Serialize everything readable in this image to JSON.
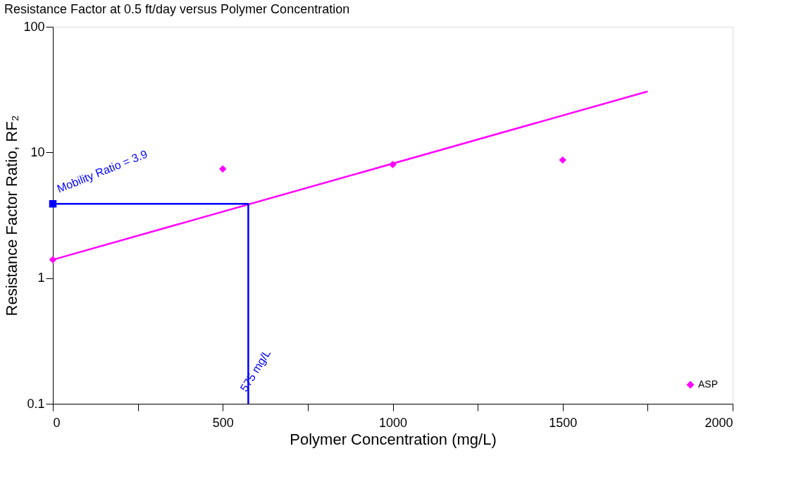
{
  "chart_data": {
    "type": "scatter",
    "title": "Resistance Factor at 0.5 ft/day versus Polymer Concentration",
    "xlabel": "Polymer Concentration (mg/L)",
    "ylabel": "Resistance Factor Ratio, RF₂",
    "log": "y",
    "grid": false,
    "legend": "bottom right",
    "xlim": [
      0,
      2000
    ],
    "xticks": [
      0,
      {
        "value": 250,
        "label": null
      },
      500,
      {
        "value": 750,
        "label": null
      },
      1000,
      {
        "value": 1250,
        "label": null
      },
      1500,
      {
        "value": 1750,
        "label": null
      },
      2000
    ],
    "ylim": [
      0.1,
      100
    ],
    "yticks": [
      0.1,
      1,
      10,
      100
    ],
    "series": [
      {
        "name": "ASP",
        "marker": "diamond",
        "color": "#ff00ff",
        "x": [
          0,
          500,
          1000,
          1500
        ],
        "values": [
          1.4,
          7.4,
          8.0,
          8.7
        ]
      },
      {
        "type": "line",
        "marker": "none",
        "line_style": "solid",
        "color": "#ff00ff",
        "x": [
          0,
          1750
        ],
        "values": [
          1.4,
          30.6
        ]
      },
      {
        "type": "line",
        "marker": "none",
        "line_style": "solid",
        "color": "#0000ff",
        "x": [
          0,
          575,
          575
        ],
        "values": [
          3.9,
          3.9,
          0.1
        ]
      },
      {
        "marker": "square",
        "color": "#0000ff",
        "x": [
          0
        ],
        "values": [
          3.9
        ]
      }
    ],
    "annotations": [
      {
        "text": "Mobility Ratio = 3.9",
        "x": 0,
        "y": 3.9
      },
      {
        "text": "575 mg/L",
        "x": 575,
        "y": 0.1
      }
    ]
  }
}
